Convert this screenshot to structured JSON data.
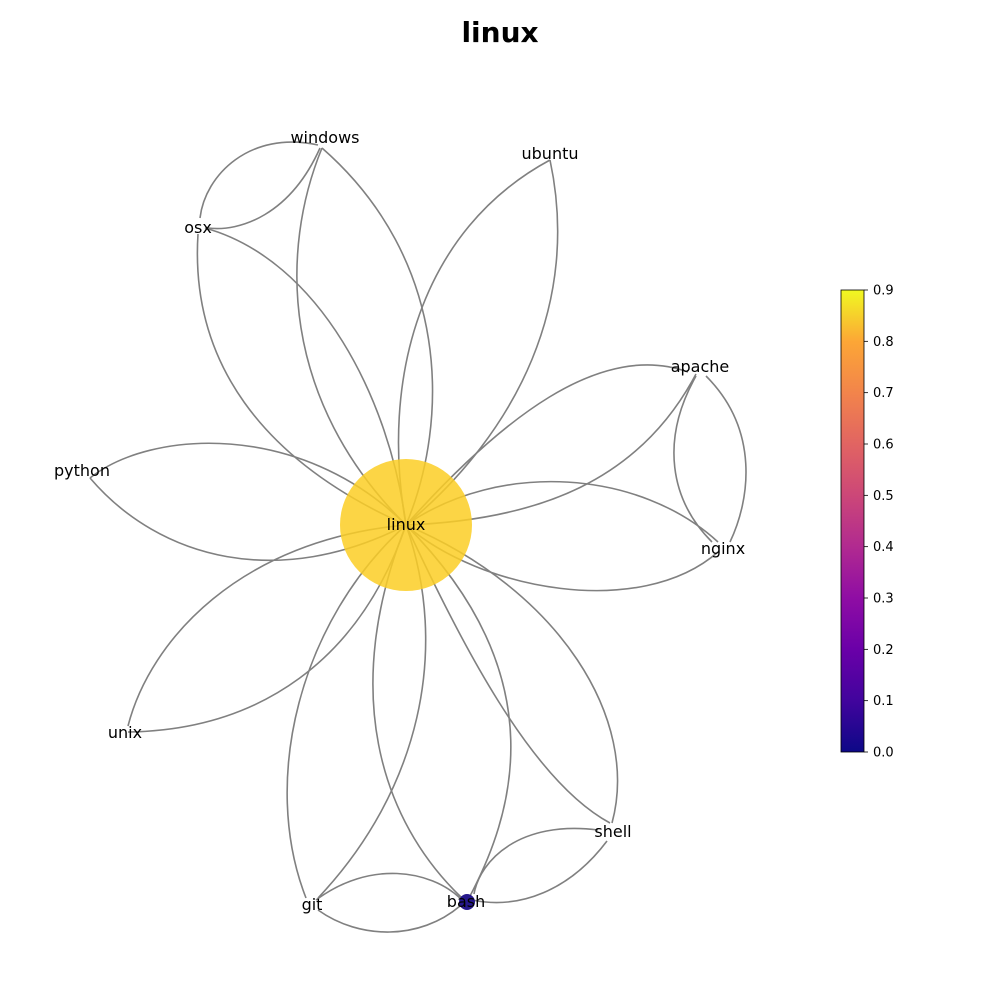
{
  "title": "linux",
  "nodes": [
    {
      "id": "linux",
      "label": "linux",
      "value": 0.8,
      "size": "large"
    },
    {
      "id": "windows",
      "label": "windows"
    },
    {
      "id": "ubuntu",
      "label": "ubuntu"
    },
    {
      "id": "osx",
      "label": "osx"
    },
    {
      "id": "apache",
      "label": "apache"
    },
    {
      "id": "python",
      "label": "python"
    },
    {
      "id": "nginx",
      "label": "nginx"
    },
    {
      "id": "unix",
      "label": "unix"
    },
    {
      "id": "shell",
      "label": "shell"
    },
    {
      "id": "git",
      "label": "git"
    },
    {
      "id": "bash",
      "label": "bash",
      "value": 0.05,
      "size": "small"
    }
  ],
  "edges": [
    [
      "linux",
      "windows"
    ],
    [
      "linux",
      "ubuntu"
    ],
    [
      "linux",
      "osx"
    ],
    [
      "linux",
      "apache"
    ],
    [
      "linux",
      "python"
    ],
    [
      "linux",
      "nginx"
    ],
    [
      "linux",
      "unix"
    ],
    [
      "linux",
      "shell"
    ],
    [
      "linux",
      "git"
    ],
    [
      "linux",
      "bash"
    ],
    [
      "windows",
      "osx"
    ],
    [
      "apache",
      "nginx"
    ],
    [
      "git",
      "bash"
    ],
    [
      "shell",
      "bash"
    ]
  ],
  "colorbar": {
    "colormap": "plasma",
    "ticks": [
      "0.0",
      "0.1",
      "0.2",
      "0.3",
      "0.4",
      "0.5",
      "0.6",
      "0.7",
      "0.8",
      "0.9"
    ]
  },
  "colors": {
    "edge": "#808080",
    "node_linux": "#fcce25",
    "node_bash": "#1a0c86"
  }
}
